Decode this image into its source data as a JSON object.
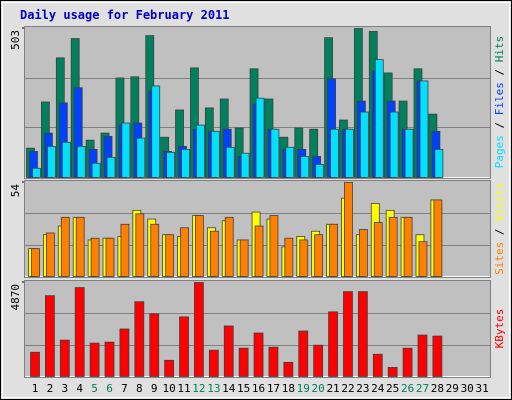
{
  "chart_data": {
    "type": "bar",
    "title": "Daily usage for February 2011",
    "categories": [
      "1",
      "2",
      "3",
      "4",
      "5",
      "6",
      "7",
      "8",
      "9",
      "10",
      "11",
      "12",
      "13",
      "14",
      "15",
      "16",
      "17",
      "18",
      "19",
      "20",
      "21",
      "22",
      "23",
      "24",
      "25",
      "26",
      "27",
      "28",
      "29",
      "30",
      "31"
    ],
    "category_colors": [
      "#000000",
      "#000000",
      "#000000",
      "#000000",
      "#00805c",
      "#00805c",
      "#000000",
      "#000000",
      "#000000",
      "#000000",
      "#000000",
      "#00805c",
      "#00805c",
      "#000000",
      "#000000",
      "#000000",
      "#000000",
      "#000000",
      "#00805c",
      "#00805c",
      "#000000",
      "#000000",
      "#000000",
      "#000000",
      "#000000",
      "#00805c",
      "#00805c",
      "#000000",
      "#000000",
      "#000000",
      "#000000"
    ],
    "legend_separator": " / ",
    "grid_divisions": 3,
    "panels": [
      {
        "ylim": [
          0,
          503
        ],
        "yticks": [
          503
        ],
        "series": [
          {
            "name": "Hits",
            "color": "#00805c",
            "values": [
              99,
              255,
              404,
              469,
              126,
              150,
              336,
              340,
              479,
              136,
              228,
              370,
              235,
              265,
              167,
              367,
              265,
              136,
              167,
              163,
              472,
              194,
              503,
              493,
              353,
              258,
              367,
              214,
              null,
              null,
              null
            ]
          },
          {
            "name": "Files",
            "color": "#0040ff",
            "values": [
              88,
              150,
              252,
              303,
              95,
              139,
              180,
              184,
              292,
              88,
              105,
              163,
              156,
              163,
              71,
              248,
              163,
              95,
              95,
              71,
              333,
              163,
              258,
              360,
              258,
              163,
              326,
              156,
              null,
              null,
              null
            ]
          },
          {
            "name": "Pages",
            "color": "#00e0ff",
            "values": [
              31,
              105,
              119,
              105,
              48,
              68,
              184,
              133,
              309,
              85,
              95,
              177,
              156,
              102,
              82,
              268,
              163,
              102,
              71,
              44,
              163,
              163,
              221,
              398,
              221,
              163,
              326,
              95,
              null,
              null,
              null
            ]
          }
        ]
      },
      {
        "ylim": [
          0,
          54
        ],
        "yticks": [
          54
        ],
        "series": [
          {
            "name": "Visits",
            "color": "#ffff00",
            "values": [
              16,
              24,
              29,
              34,
              21,
              22,
              23,
              38,
              33,
              24,
              23,
              35,
              28,
              32,
              21,
              37,
              33,
              17,
              23,
              26,
              30,
              45,
              24,
              42,
              38,
              34,
              24,
              44,
              null,
              null,
              null
            ]
          },
          {
            "name": "Sites",
            "color": "#ff8000",
            "values": [
              16,
              25,
              34,
              34,
              22,
              22,
              30,
              36,
              30,
              24,
              28,
              35,
              26,
              34,
              21,
              29,
              35,
              22,
              21,
              24,
              30,
              54,
              27,
              31,
              34,
              34,
              20,
              44,
              null,
              null,
              null
            ]
          }
        ]
      },
      {
        "ylim": [
          0,
          4870
        ],
        "yticks": [
          4870
        ],
        "series": [
          {
            "name": "KBytes",
            "color": "#ff0000",
            "values": [
              1257,
              4189,
              1885,
              4608,
              1728,
              1780,
              2461,
              3875,
              3247,
              838,
              3090,
              4870,
              1361,
              2618,
              1466,
              2252,
              1519,
              733,
              2356,
              1623,
              3351,
              4399,
              4399,
              1152,
              471,
              1466,
              2147,
              2095,
              null,
              null,
              null
            ]
          }
        ]
      }
    ]
  }
}
